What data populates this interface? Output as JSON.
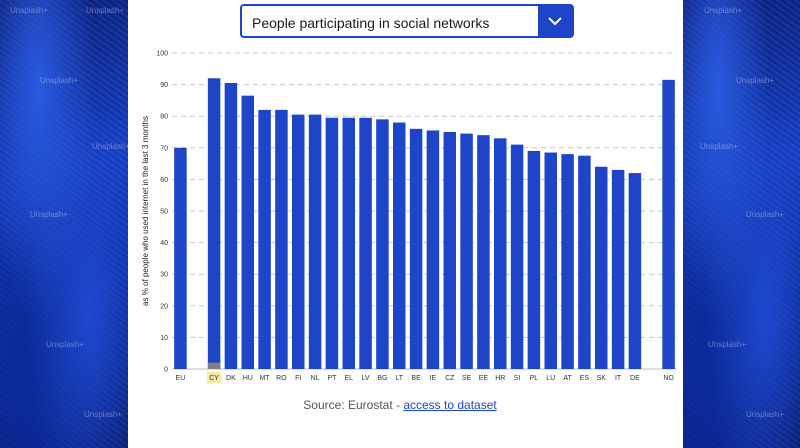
{
  "dropdown": {
    "label": "People participating in social networks"
  },
  "source": {
    "prefix": "Source: Eurostat - ",
    "link": "access to dataset"
  },
  "colors": {
    "bar": "#1e45c8",
    "highlight_bar": "#808080",
    "highlight_label_bg": "#f7e7a0"
  },
  "watermark": "Unsplash+",
  "chart_data": {
    "type": "bar",
    "title": "",
    "xlabel": "",
    "ylabel": "as % of people who used internet in the last 3 months",
    "ylim": [
      0,
      100
    ],
    "yticks": [
      0,
      10,
      20,
      30,
      40,
      50,
      60,
      70,
      80,
      90,
      100
    ],
    "categories": [
      "EU",
      "",
      "CY",
      "DK",
      "HU",
      "MT",
      "RO",
      "FI",
      "NL",
      "PT",
      "EL",
      "LV",
      "BG",
      "LT",
      "BE",
      "IE",
      "CZ",
      "SE",
      "EE",
      "HR",
      "SI",
      "PL",
      "LU",
      "AT",
      "ES",
      "SK",
      "IT",
      "DE",
      "",
      "NO"
    ],
    "values": [
      70,
      null,
      92,
      90.5,
      86.5,
      82,
      82,
      80.5,
      80.5,
      79.5,
      79.5,
      79.5,
      79,
      78,
      76,
      75.5,
      75,
      74.5,
      74,
      73,
      71,
      69,
      68.5,
      68,
      67.5,
      64,
      63,
      62,
      null,
      91.5
    ],
    "highlight": "CY",
    "highlight_value": 2,
    "grid": true
  }
}
